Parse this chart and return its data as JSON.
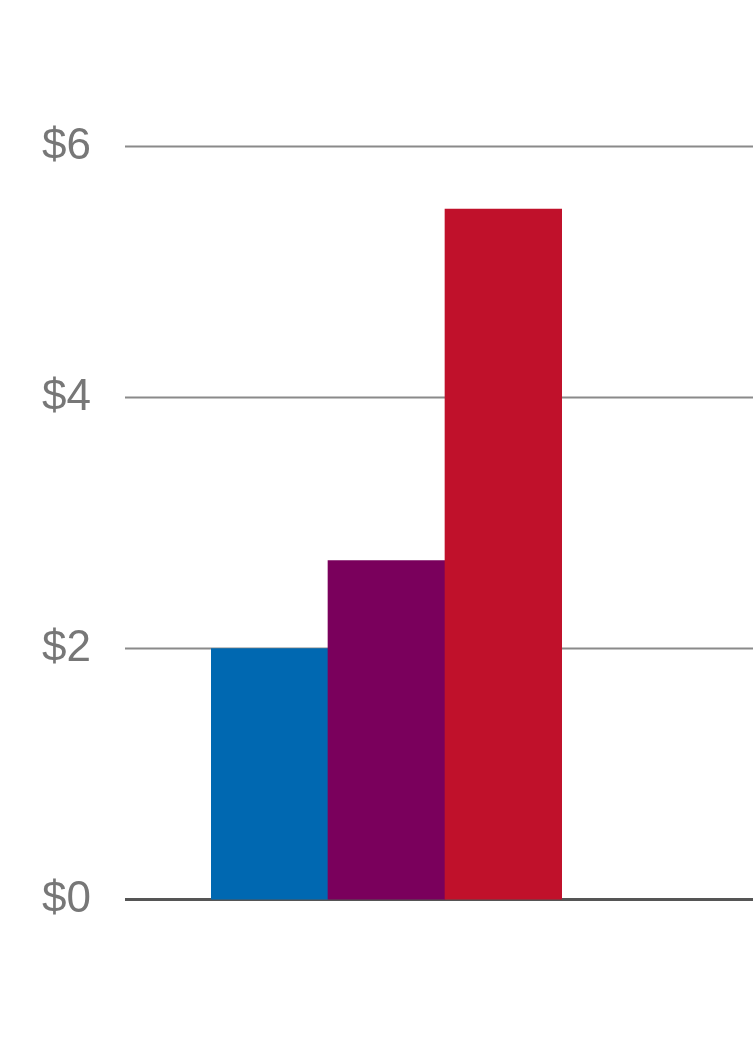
{
  "chart_data": {
    "type": "bar",
    "categories": [
      null,
      null,
      null
    ],
    "values": [
      2.0,
      2.7,
      5.5
    ],
    "colors": [
      "#0068b1",
      "#7a005c",
      "#c0112b"
    ],
    "ylim": [
      0,
      6
    ],
    "yticks": [
      {
        "value": 0,
        "label": "$0"
      },
      {
        "value": 2,
        "label": "$2"
      },
      {
        "value": 4,
        "label": "$4"
      },
      {
        "value": 6,
        "label": "$6"
      }
    ],
    "grid": "y",
    "legend": false
  }
}
